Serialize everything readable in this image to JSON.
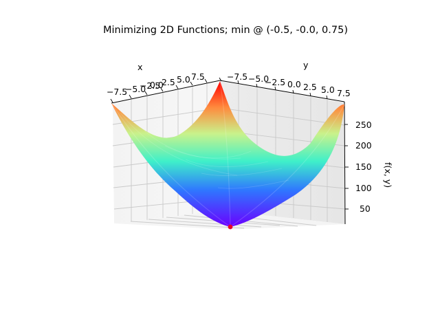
{
  "chart_data": {
    "type": "surface",
    "title": "Minimizing 2D Functions; min @ (-0.5, -0.0, 0.75)",
    "xlabel": "x",
    "ylabel": "y",
    "zlabel": "f(x, y)",
    "x_ticks": [
      "−7.5",
      "−5.0",
      "−2.5",
      "0.0",
      "2.5",
      "5.0",
      "7.5"
    ],
    "y_ticks": [
      "−7.5",
      "−5.0",
      "−2.5",
      "0.0",
      "2.5",
      "5.0",
      "7.5"
    ],
    "z_ticks": [
      "50",
      "100",
      "150",
      "200",
      "250"
    ],
    "xlim": [
      -8,
      8
    ],
    "ylim": [
      -8,
      8
    ],
    "zlim": [
      0,
      280
    ],
    "colormap": "rainbow",
    "grid": true,
    "minimum_marker": {
      "x": -0.5,
      "y": 0.0,
      "z": 0.75,
      "color": "#e8002a"
    },
    "surface_samples": [
      {
        "x": -8,
        "y": -8,
        "z": 270
      },
      {
        "x": 8,
        "y": -8,
        "z": 265
      },
      {
        "x": 8,
        "y": 8,
        "z": 200
      },
      {
        "x": -8,
        "y": 8,
        "z": 258
      },
      {
        "x": 0,
        "y": 0,
        "z": 1
      }
    ]
  }
}
